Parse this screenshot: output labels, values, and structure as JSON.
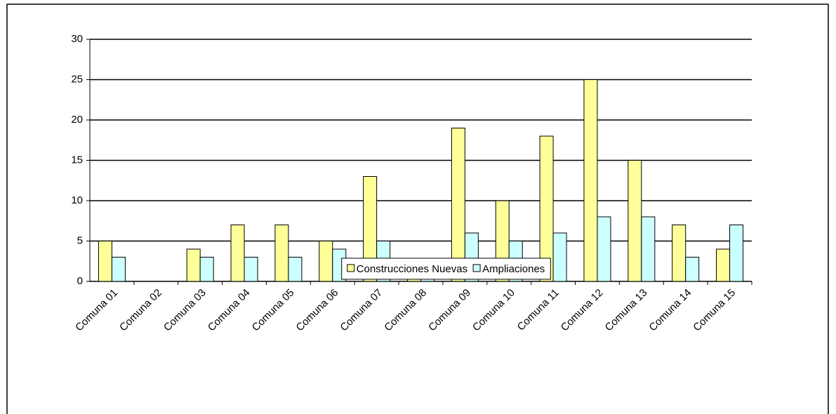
{
  "chart_data": {
    "type": "bar",
    "categories": [
      "Comuna 01",
      "Comuna 02",
      "Comuna 03",
      "Comuna 04",
      "Comuna 05",
      "Comuna 06",
      "Comuna 07",
      "Comuna 08",
      "Comuna 09",
      "Comuna 10",
      "Comuna 11",
      "Comuna 12",
      "Comuna 13",
      "Comuna 14",
      "Comuna 15"
    ],
    "series": [
      {
        "name": "Construcciones Nuevas",
        "color": "#ffff99",
        "values": [
          5,
          0,
          4,
          7,
          7,
          5,
          13,
          1,
          19,
          10,
          18,
          25,
          15,
          7,
          4
        ]
      },
      {
        "name": "Ampliaciones",
        "color": "#ccffff",
        "values": [
          3,
          0,
          3,
          3,
          3,
          4,
          5,
          2,
          6,
          5,
          6,
          8,
          8,
          3,
          7
        ]
      }
    ],
    "ylim": [
      0,
      30
    ],
    "yticks": [
      0,
      5,
      10,
      15,
      20,
      25,
      30
    ],
    "grid": true,
    "legend": "bottom"
  }
}
